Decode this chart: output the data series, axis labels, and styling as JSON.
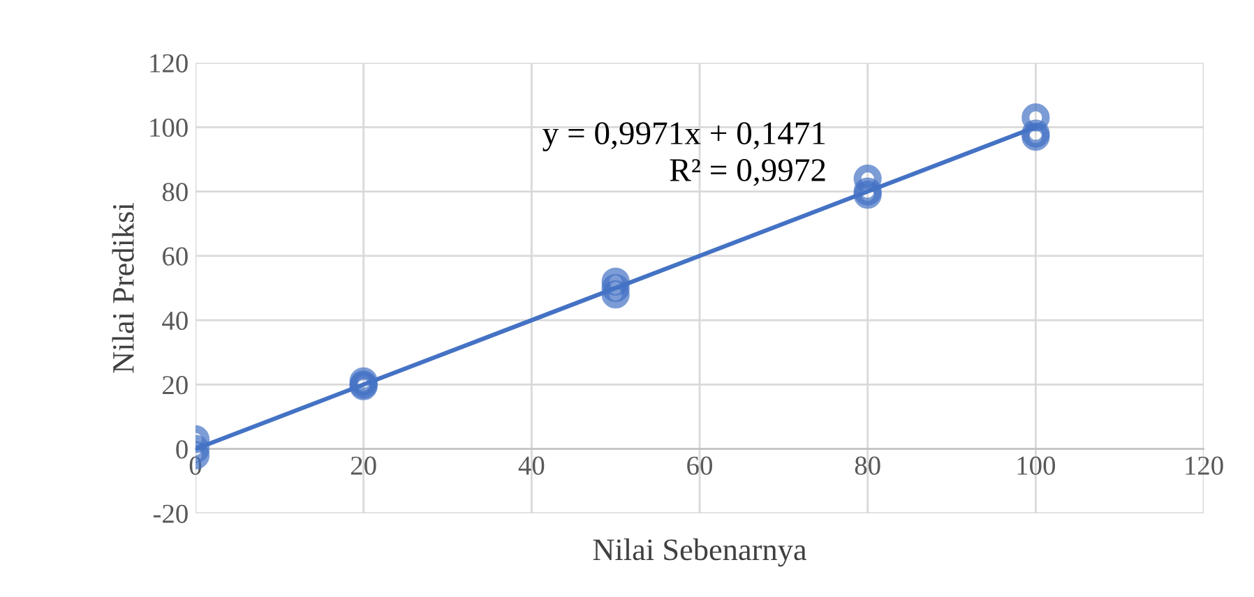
{
  "chart_data": {
    "type": "scatter",
    "xlabel": "Nilai Sebenarnya",
    "ylabel": "Nilai Prediksi",
    "x": [
      0,
      0,
      0,
      20,
      20,
      20,
      50,
      50,
      50,
      80,
      80,
      80,
      100,
      100,
      100
    ],
    "series": [
      {
        "color": "#4472c4",
        "values": [
          3,
          0,
          -2,
          21,
          20,
          19.5,
          52,
          50,
          48,
          84,
          80,
          79,
          103,
          98,
          97
        ],
        "marker": "circle"
      },
      {
        "type": "line",
        "color": "#4472c4",
        "x": [
          0,
          100
        ],
        "values": [
          0,
          100
        ],
        "marker": "none"
      }
    ],
    "annotations": [
      "y = 0,9971x + 0,1471\nR² = 0,9972"
    ],
    "xlim": [
      0,
      120
    ],
    "xticks": [
      0,
      20,
      40,
      60,
      80,
      100,
      120
    ],
    "ylim": [
      -20,
      120
    ],
    "yticks": [
      -20,
      0,
      20,
      40,
      60,
      80,
      100,
      120
    ],
    "grid": true,
    "legend": false
  }
}
